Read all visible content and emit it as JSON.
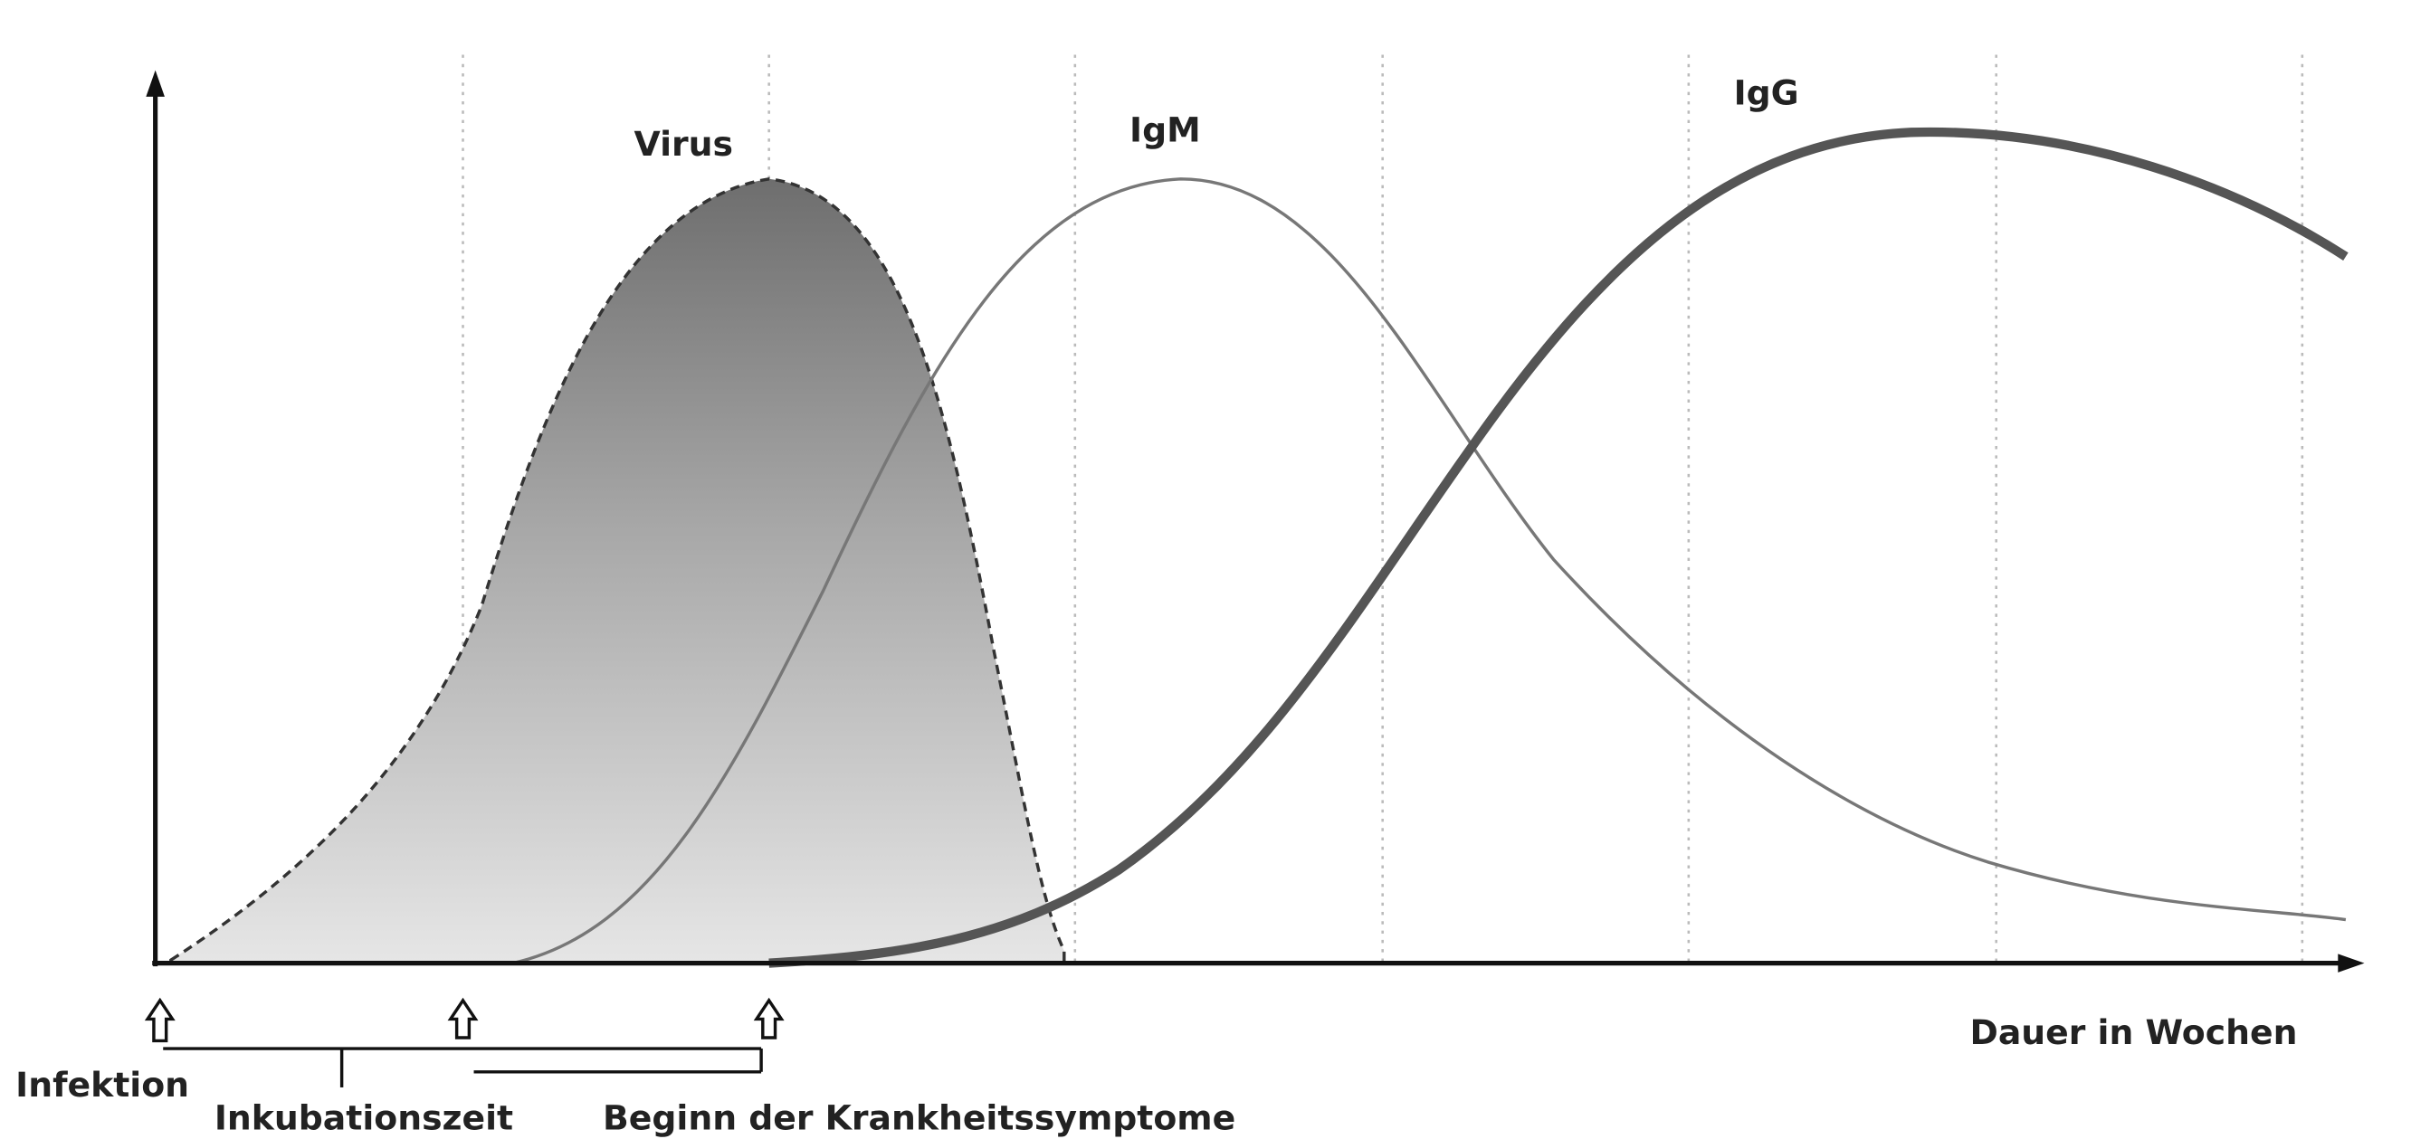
{
  "curves": {
    "virus": "Virus",
    "igm": "IgM",
    "igg": "IgG"
  },
  "x_axis_label": "Dauer in Wochen",
  "markers": {
    "infection": "Infektion",
    "incubation": "Inkubationszeit",
    "symptoms": "Beginn der Krankheitssymptome"
  }
}
